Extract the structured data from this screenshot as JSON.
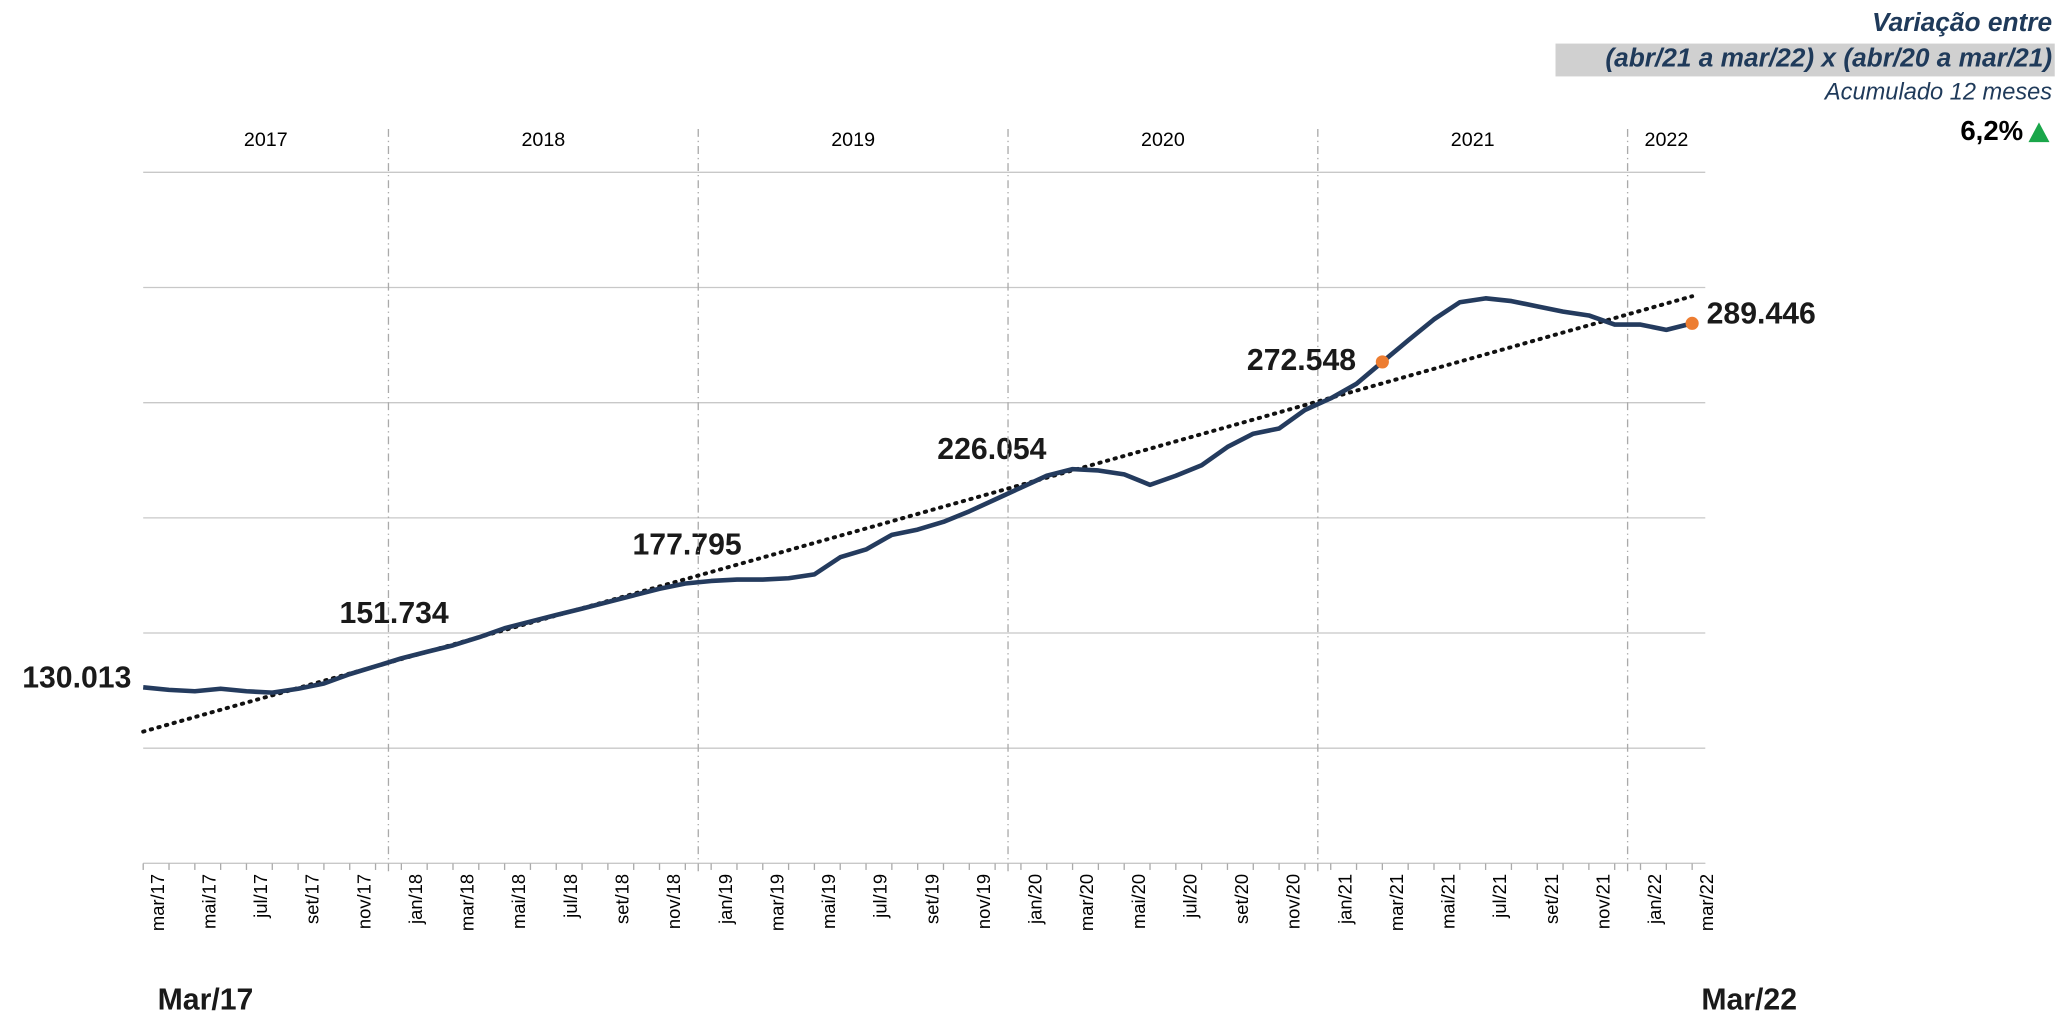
{
  "chart_data": {
    "type": "line",
    "header": {
      "title": "Variação entre",
      "subtitle": "(abr/21 a mar/22) x (abr/20 a mar/21)",
      "note": "Acumulado 12 meses",
      "change": "6,2%"
    },
    "start_label": "Mar/17",
    "end_label": "Mar/22",
    "years": [
      "2017",
      "2018",
      "2019",
      "2020",
      "2021",
      "2022"
    ],
    "categories": [
      "mar/17",
      null,
      "mai/17",
      null,
      "jul/17",
      null,
      "set/17",
      null,
      "nov/17",
      null,
      "jan/18",
      null,
      "mar/18",
      null,
      "mai/18",
      null,
      "jul/18",
      null,
      "set/18",
      null,
      "nov/18",
      null,
      "jan/19",
      null,
      "mar/19",
      null,
      "mai/19",
      null,
      "jul/19",
      null,
      "set/19",
      null,
      "nov/19",
      null,
      "jan/20",
      null,
      "mar/20",
      null,
      "mai/20",
      null,
      "jul/20",
      null,
      "set/20",
      null,
      "nov/20",
      null,
      "jan/21",
      null,
      "mar/21",
      null,
      "mai/21",
      null,
      "jul/21",
      null,
      "set/21",
      null,
      "nov/21",
      null,
      "jan/22",
      null,
      "mar/22"
    ],
    "series": [
      {
        "name": null,
        "color": "#243b5e",
        "values": [
          130013,
          128900,
          128300,
          129400,
          128300,
          127700,
          129400,
          131700,
          135800,
          139200,
          142700,
          145600,
          148400,
          151900,
          155900,
          158800,
          161700,
          164500,
          167400,
          170300,
          173200,
          175500,
          176600,
          177200,
          177200,
          177800,
          179500,
          187000,
          190400,
          196800,
          199100,
          202500,
          207100,
          212300,
          217500,
          222700,
          225600,
          225000,
          223300,
          218700,
          222700,
          227300,
          235300,
          241100,
          243400,
          251500,
          256600,
          263000,
          272548,
          282000,
          291200,
          298700,
          300400,
          299200,
          296900,
          294600,
          292900,
          288900,
          288900,
          286600,
          289446
        ],
        "value_labels": [
          "130.013",
          null,
          null,
          null,
          null,
          null,
          null,
          null,
          null,
          null,
          null,
          null,
          null,
          null,
          null,
          null,
          null,
          null,
          null,
          null,
          null,
          null,
          null,
          null,
          null,
          null,
          null,
          null,
          null,
          null,
          null,
          null,
          null,
          null,
          null,
          null,
          null,
          null,
          null,
          null,
          null,
          null,
          null,
          null,
          null,
          null,
          null,
          null,
          "272.548",
          null,
          null,
          null,
          null,
          null,
          null,
          null,
          null,
          null,
          null,
          null,
          "289.446"
        ]
      }
    ],
    "annotations": [
      "151.734",
      "177.795",
      "226.054"
    ],
    "marker_color": "#ed7d31",
    "trendline": true,
    "ylim": [
      52900,
      355600
    ],
    "grid": true
  }
}
